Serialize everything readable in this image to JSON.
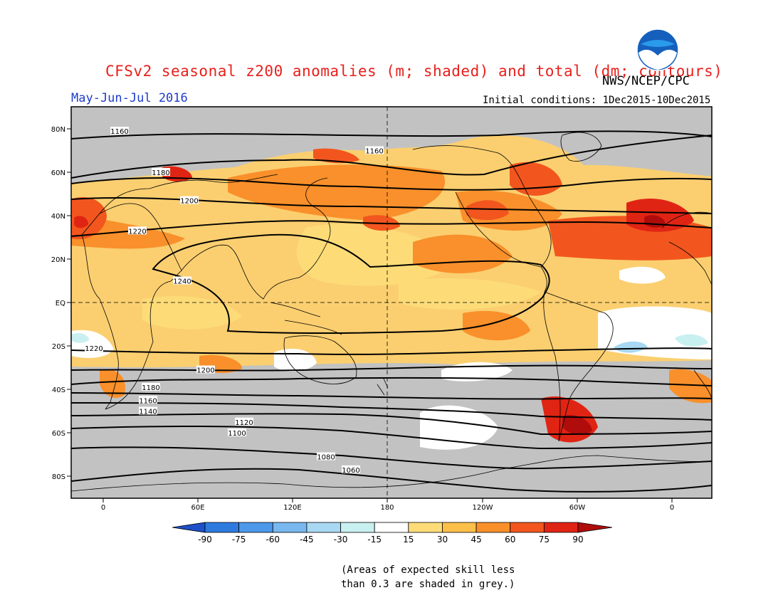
{
  "title": "CFSv2 seasonal z200 anomalies (m; shaded) and total (dm; contours)",
  "agency": "NWS/NCEP/CPC",
  "logo_text": "NOAA",
  "period": "May-Jun-Jul 2016",
  "initial_conditions": "Initial conditions: 1Dec2015-10Dec2015",
  "note_line1": "(Areas of expected skill less",
  "note_line2": "than 0.3 are shaded in grey.)",
  "map": {
    "lat_labels": [
      "80N",
      "60N",
      "40N",
      "20N",
      "EQ",
      "20S",
      "40S",
      "60S",
      "80S"
    ],
    "lon_labels": [
      "0",
      "60E",
      "120E",
      "180",
      "120W",
      "60W",
      "0"
    ],
    "contour_labels": [
      {
        "text": "1160",
        "lat": 79
      },
      {
        "text": "1160",
        "lat": 70
      },
      {
        "text": "1180",
        "lat": 60
      },
      {
        "text": "1200",
        "lat": 47
      },
      {
        "text": "1220",
        "lat": 33
      },
      {
        "text": "1240",
        "lat": 10
      },
      {
        "text": "1220",
        "lat": -21
      },
      {
        "text": "1200",
        "lat": -31
      },
      {
        "text": "1180",
        "lat": -39
      },
      {
        "text": "1160",
        "lat": -45
      },
      {
        "text": "1140",
        "lat": -50
      },
      {
        "text": "1120",
        "lat": -55
      },
      {
        "text": "1100",
        "lat": -60
      },
      {
        "text": "1080",
        "lat": -71
      },
      {
        "text": "1060",
        "lat": -77
      }
    ]
  },
  "colorbar": {
    "levels": [
      "-90",
      "-75",
      "-60",
      "-45",
      "-30",
      "-15",
      "15",
      "30",
      "45",
      "60",
      "75",
      "90"
    ],
    "colors": [
      "#1e50c8",
      "#2e7be0",
      "#4d98ea",
      "#78b8ee",
      "#a8d8f2",
      "#c9f0f0",
      "#ffffff",
      "#fddc78",
      "#fcbf4a",
      "#f9902b",
      "#f2561e",
      "#e02414",
      "#b00c0c"
    ]
  },
  "colors": {
    "title": "#e8201c",
    "period": "#1e3ccf",
    "low_skill_grey": "#c2c2c2"
  }
}
